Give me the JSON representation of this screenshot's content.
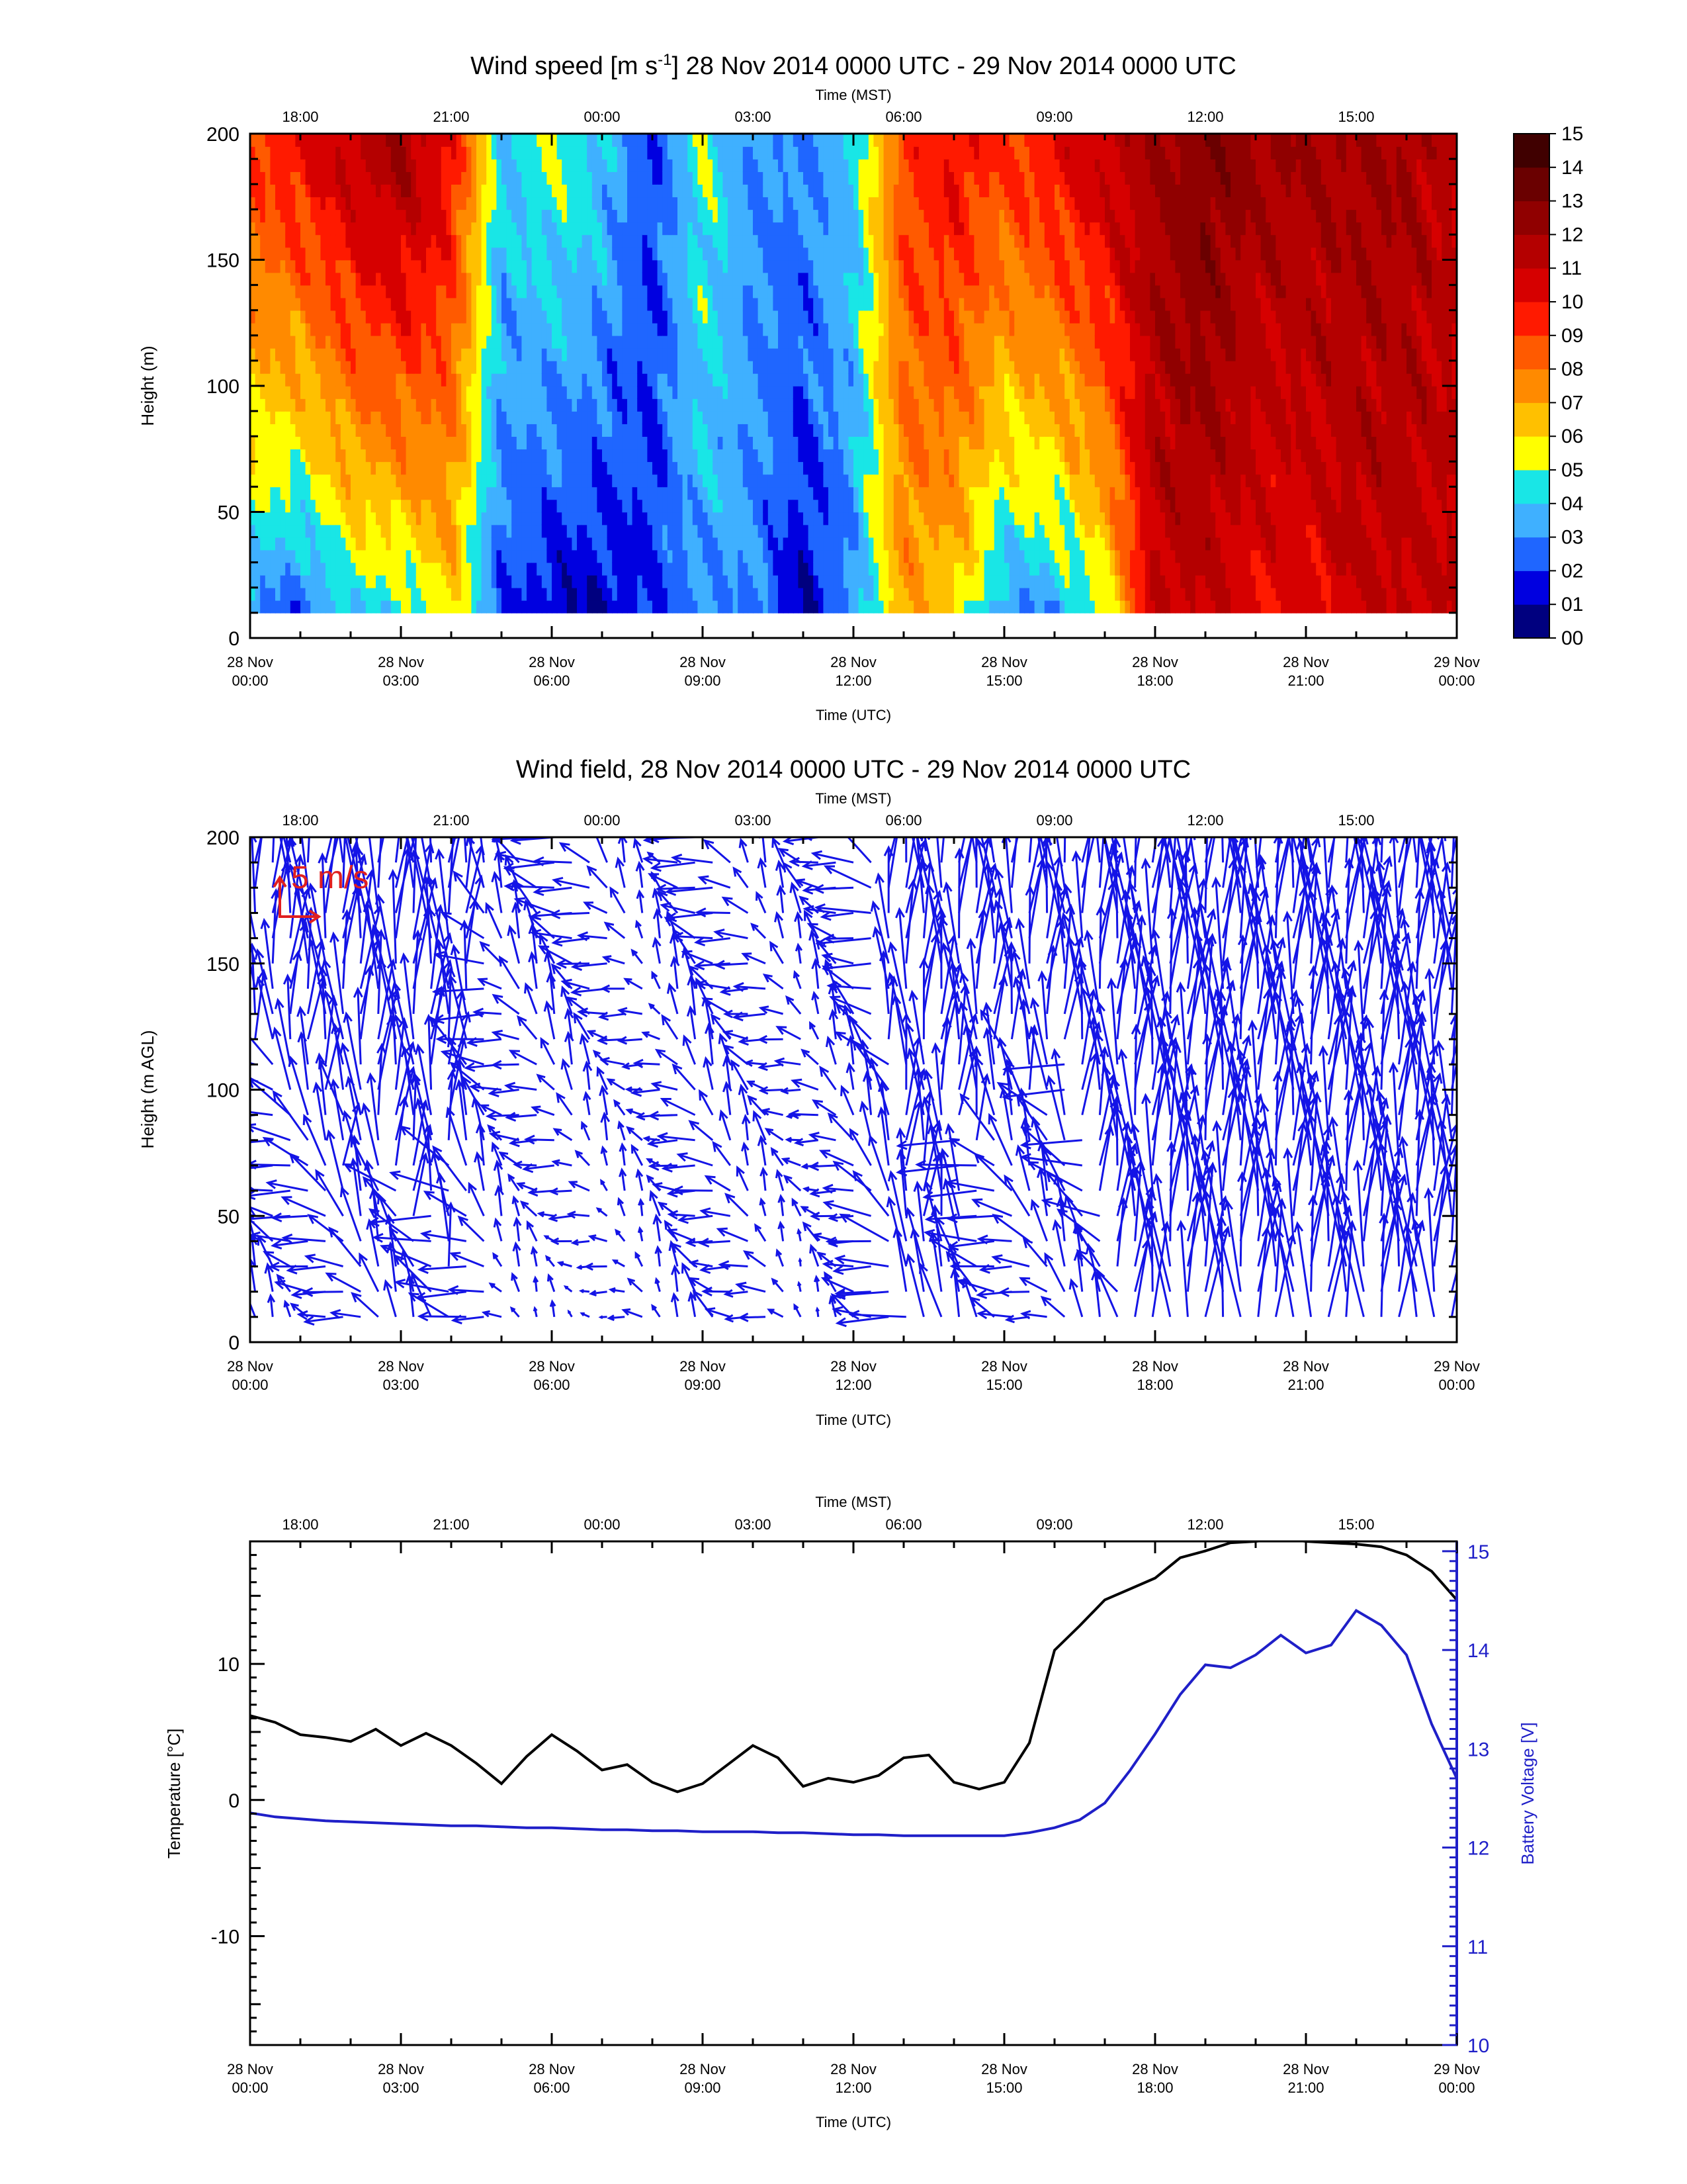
{
  "colors": {
    "temperature_line": "#000000",
    "voltage_line": "#1f1fc8",
    "wind_vector": "#1414e6",
    "reference_vector": "#e02020",
    "colorscale": [
      "#00007f",
      "#0000e0",
      "#1f66ff",
      "#3fb0ff",
      "#19e6e6",
      "#ffff00",
      "#ffc000",
      "#ff8a00",
      "#ff5a00",
      "#ff1a00",
      "#d60000",
      "#b40000",
      "#900000",
      "#6a0000",
      "#400000",
      "#180000"
    ]
  },
  "common": {
    "x_ticks_utc": [
      {
        "l1": "28 Nov",
        "l2": "00:00"
      },
      {
        "l1": "28 Nov",
        "l2": "03:00"
      },
      {
        "l1": "28 Nov",
        "l2": "06:00"
      },
      {
        "l1": "28 Nov",
        "l2": "09:00"
      },
      {
        "l1": "28 Nov",
        "l2": "12:00"
      },
      {
        "l1": "28 Nov",
        "l2": "15:00"
      },
      {
        "l1": "28 Nov",
        "l2": "18:00"
      },
      {
        "l1": "28 Nov",
        "l2": "21:00"
      },
      {
        "l1": "29 Nov",
        "l2": "00:00"
      }
    ],
    "x_ticks_mst": [
      "18:00",
      "21:00",
      "00:00",
      "03:00",
      "06:00",
      "09:00",
      "12:00",
      "15:00"
    ],
    "mst_offset_hours": 1,
    "xlabel_utc": "Time (UTC)",
    "xlabel_mst": "Time (MST)"
  },
  "chart_data": [
    {
      "type": "heatmap",
      "title_prefix": "Wind speed [m s",
      "title_sup": "-1",
      "title_suffix": "] 28 Nov 2014 0000 UTC - 29 Nov 2014 0000 UTC",
      "ylabel": "Height (m)",
      "xlim_hours": [
        0,
        24
      ],
      "ylim": [
        0,
        200
      ],
      "y_ticks": [
        "0",
        "50",
        "100",
        "150",
        "200"
      ],
      "colorbar_labels": [
        "00",
        "01",
        "02",
        "03",
        "04",
        "05",
        "06",
        "07",
        "08",
        "09",
        "10",
        "11",
        "12",
        "13",
        "14",
        "15"
      ],
      "wind_speed_profile_hours": [
        0,
        1,
        2,
        3,
        4,
        5,
        6,
        7,
        8,
        9,
        10,
        11,
        12,
        13,
        14,
        15,
        16,
        17,
        18,
        19,
        20,
        21,
        22,
        23,
        24
      ],
      "wind_speed_low_level": [
        3,
        2,
        4,
        4,
        6,
        2,
        1,
        1,
        2,
        3,
        3,
        1,
        3,
        7,
        6,
        3,
        3,
        5,
        11,
        11,
        10,
        10,
        11,
        11,
        11
      ],
      "wind_speed_upper_level": [
        9,
        10,
        11,
        12,
        10,
        4,
        5,
        4,
        2,
        5,
        3,
        3,
        4,
        9,
        10,
        9,
        10,
        11,
        12,
        13,
        12,
        12,
        12,
        12,
        11
      ]
    },
    {
      "type": "scatter",
      "title": "Wind field, 28 Nov 2014 0000 UTC - 29 Nov 2014 0000 UTC",
      "ylabel": "Height (m AGL)",
      "xlim_hours": [
        0,
        24
      ],
      "ylim": [
        0,
        200
      ],
      "y_ticks": [
        "0",
        "50",
        "100",
        "150",
        "200"
      ],
      "reference_vector_label": "5 m/s",
      "reference_vector_speed_ms": 5
    },
    {
      "type": "line",
      "ylabel_left": "Temperature [°C]",
      "ylabel_right": "Battery Voltage [V]",
      "xlim_hours": [
        0,
        24
      ],
      "ylim_left": [
        -18,
        19
      ],
      "ylim_right": [
        10,
        15.1
      ],
      "y_ticks_left": [
        {
          "v": 10,
          "t": "10"
        },
        {
          "v": 0,
          "t": "0"
        },
        {
          "v": -10,
          "t": "-10"
        }
      ],
      "y_ticks_right": [
        {
          "v": 10,
          "t": "10"
        },
        {
          "v": 11,
          "t": "11"
        },
        {
          "v": 12,
          "t": "12"
        },
        {
          "v": 13,
          "t": "13"
        },
        {
          "v": 14,
          "t": "14"
        },
        {
          "v": 15,
          "t": "15"
        }
      ],
      "series": [
        {
          "axis": "left",
          "x_hours": [
            0,
            0.5,
            1,
            1.5,
            2,
            2.5,
            3,
            3.5,
            4,
            4.5,
            5,
            5.5,
            6,
            6.5,
            7,
            7.5,
            8,
            8.5,
            9,
            9.5,
            10,
            10.5,
            11,
            11.5,
            12,
            12.5,
            13,
            13.5,
            14,
            14.5,
            15,
            15.5,
            16,
            16.5,
            17,
            17.5,
            18,
            18.5,
            19,
            19.5,
            20,
            20.5,
            21,
            21.5,
            22,
            22.5,
            23,
            23.5,
            24
          ],
          "y": [
            6.2,
            5.7,
            4.8,
            4.6,
            4.3,
            5.2,
            4.0,
            4.9,
            4.0,
            2.7,
            1.2,
            3.2,
            4.8,
            3.6,
            2.2,
            2.6,
            1.3,
            0.6,
            1.2,
            2.6,
            4.0,
            3.1,
            1.0,
            1.6,
            1.3,
            1.8,
            3.1,
            3.3,
            1.3,
            0.8,
            1.3,
            4.2,
            11.0,
            12.8,
            14.7,
            15.5,
            16.3,
            17.8,
            18.3,
            18.9,
            19.0,
            19.2,
            19.0,
            18.9,
            18.8,
            18.6,
            18.0,
            16.8,
            14.7
          ]
        },
        {
          "axis": "right",
          "x_hours": [
            0,
            0.5,
            1,
            1.5,
            2,
            2.5,
            3,
            3.5,
            4,
            4.5,
            5,
            5.5,
            6,
            6.5,
            7,
            7.5,
            8,
            8.5,
            9,
            9.5,
            10,
            10.5,
            11,
            11.5,
            12,
            12.5,
            13,
            13.5,
            14,
            14.5,
            15,
            15.5,
            16,
            16.5,
            17,
            17.5,
            18,
            18.5,
            19,
            19.5,
            20,
            20.5,
            21,
            21.5,
            22,
            22.5,
            23,
            23.5,
            24
          ],
          "y": [
            12.35,
            12.31,
            12.29,
            12.27,
            12.26,
            12.25,
            12.24,
            12.23,
            12.22,
            12.22,
            12.21,
            12.2,
            12.2,
            12.19,
            12.18,
            12.18,
            12.17,
            12.17,
            12.16,
            12.16,
            12.16,
            12.15,
            12.15,
            12.14,
            12.13,
            12.13,
            12.12,
            12.12,
            12.12,
            12.12,
            12.12,
            12.15,
            12.2,
            12.28,
            12.45,
            12.78,
            13.15,
            13.55,
            13.85,
            13.82,
            13.95,
            14.15,
            13.97,
            14.05,
            14.4,
            14.25,
            13.95,
            13.25,
            12.7
          ]
        }
      ]
    }
  ]
}
